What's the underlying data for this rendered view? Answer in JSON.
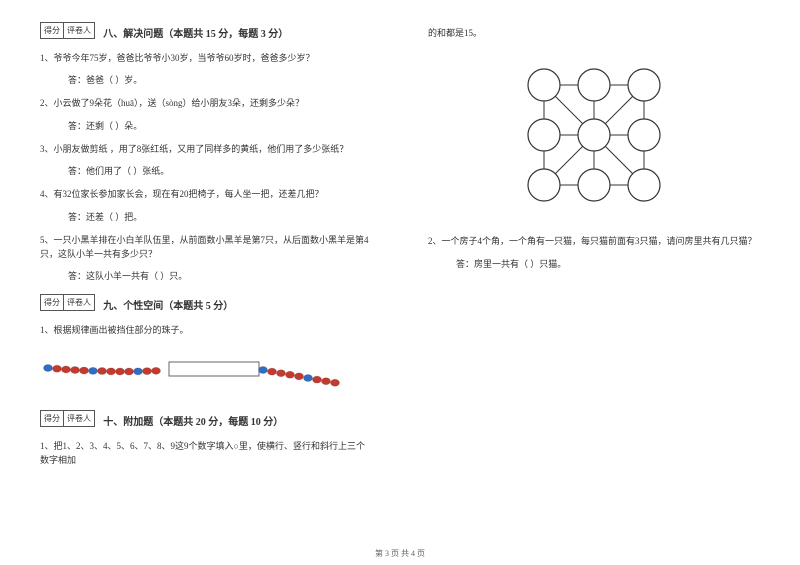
{
  "scorebox": {
    "left": "得分",
    "right": "评卷人"
  },
  "section8": {
    "title": "八、解决问题（本题共 15 分，每题 3 分）",
    "q1": "1、爷爷今年75岁，爸爸比爷爷小30岁，当爷爷60岁时，爸爸多少岁？",
    "a1": "答：爸爸（ ）岁。",
    "q2": "2、小云做了9朵花（huā），送（sòng）给小朋友3朵，还剩多少朵？",
    "a2": "答：还剩（ ）朵。",
    "q3": "3、小朋友做剪纸 ，用了8张红纸，又用了同样多的黄纸，他们用了多少张纸？",
    "a3": "答：他们用了（  ）张纸。",
    "q4": "4、有32位家长参加家长会，现在有20把椅子，每人坐一把，还差几把？",
    "a4": "答：还差（  ）把。",
    "q5": "5、一只小黑羊排在小白羊队伍里，从前面数小黑羊是第7只，从后面数小黑羊是第4只，这队小羊一共有多少只？",
    "a5": "答：这队小羊一共有（  ）只。"
  },
  "section9": {
    "title": "九、个性空间（本题共 5 分）",
    "q1": "1、根据规律画出被挡住部分的珠子。"
  },
  "section10": {
    "title": "十、附加题（本题共 20 分，每题 10 分）",
    "q1": "1、把1、2、3、4、5、6、7、8、9这9个数字填入○里，使横行、竖行和斜行上三个数字相加",
    "q1_cont": "的和都是15。",
    "q2": "2、一个房子4个角，一个角有一只猫，每只猫前面有3只猫，请问房里共有几只猫？",
    "a2": "答：房里一共有（  ）只猫。"
  },
  "footer": "第 3 页 共 4 页",
  "diagram": {
    "circle_r": 16,
    "gap": 50,
    "stroke": "#333333",
    "bg": "#ffffff"
  },
  "beads": {
    "red": "#c43a2f",
    "blue": "#2f6ec4",
    "box_stroke": "#666666",
    "bg": "#ffffff"
  }
}
